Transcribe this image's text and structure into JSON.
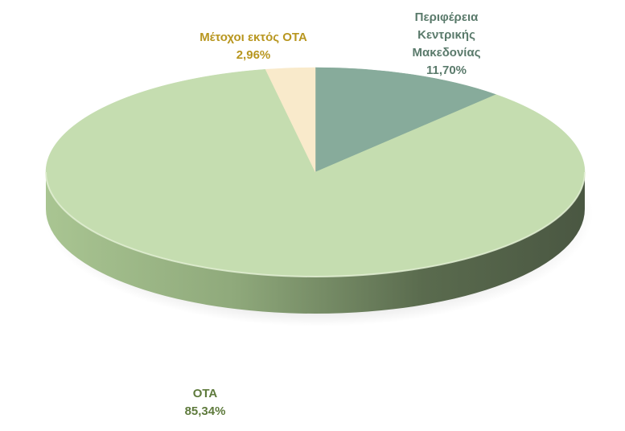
{
  "chart_data": {
    "type": "pie",
    "title": "",
    "slices": [
      {
        "label_lines": [
          "Περιφέρεια",
          "Κεντρικής",
          "Μακεδονίας"
        ],
        "value": 11.7,
        "value_text": "11,70%",
        "color": "#87ab9b",
        "label_color": "#5a7a6b"
      },
      {
        "label_lines": [
          "ΟΤΑ"
        ],
        "value": 85.34,
        "value_text": "85,34%",
        "color": "#c5ddb0",
        "label_color": "#5e7a3c"
      },
      {
        "label_lines": [
          "Μέτοχοι εκτός ΟΤΑ"
        ],
        "value": 2.96,
        "value_text": "2,96%",
        "color": "#f9eacb",
        "label_color": "#b8961f"
      }
    ],
    "style": "3d",
    "legend": "none"
  }
}
